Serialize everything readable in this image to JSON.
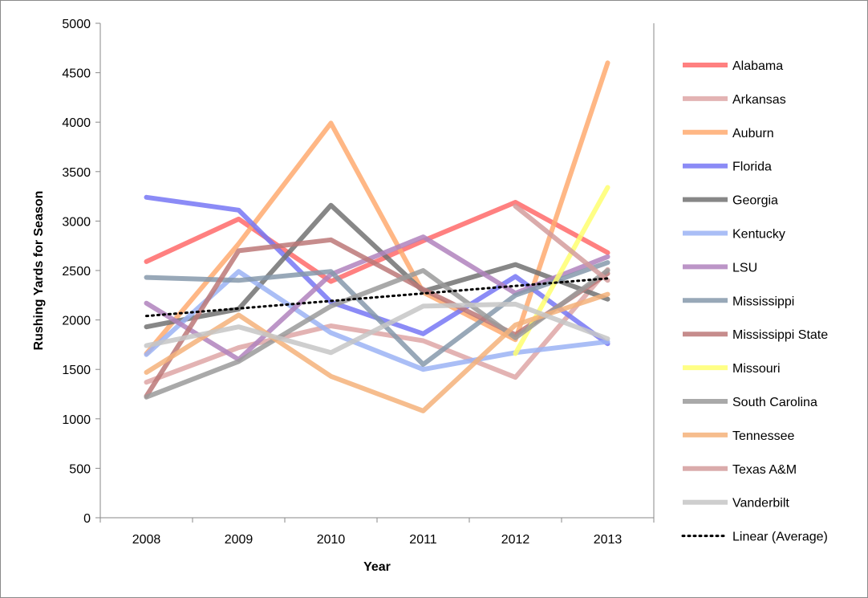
{
  "chart_data": {
    "type": "line",
    "title": "",
    "xlabel": "Year",
    "ylabel": "Rushing Yards for Season",
    "x": [
      "2008",
      "2009",
      "2010",
      "2011",
      "2012",
      "2013"
    ],
    "ylim": [
      0,
      5000
    ],
    "yticks": [
      0,
      500,
      1000,
      1500,
      2000,
      2500,
      3000,
      3500,
      4000,
      4500,
      5000
    ],
    "grid": false,
    "legend_position": "right",
    "series": [
      {
        "name": "Alabama",
        "color": "#ff6a6a",
        "values": [
          2590,
          3020,
          2390,
          2800,
          3190,
          2680
        ]
      },
      {
        "name": "Arkansas",
        "color": "#dea6a6",
        "values": [
          1370,
          1720,
          1940,
          1790,
          1420,
          2510
        ]
      },
      {
        "name": "Auburn",
        "color": "#ffaa70",
        "values": [
          1660,
          2770,
          3990,
          2280,
          1800,
          4600
        ]
      },
      {
        "name": "Florida",
        "color": "#7777f5",
        "values": [
          3240,
          3110,
          2180,
          1860,
          2440,
          1760
        ]
      },
      {
        "name": "Georgia",
        "color": "#727272",
        "values": [
          1930,
          2110,
          3160,
          2290,
          2560,
          2210
        ]
      },
      {
        "name": "Kentucky",
        "color": "#9bb3f5",
        "values": [
          1650,
          2490,
          1870,
          1500,
          1670,
          1780
        ]
      },
      {
        "name": "LSU",
        "color": "#b082bd",
        "values": [
          2170,
          1600,
          2460,
          2840,
          2270,
          2640
        ]
      },
      {
        "name": "Mississippi",
        "color": "#8699ab",
        "values": [
          2430,
          2400,
          2490,
          1550,
          2250,
          2580
        ]
      },
      {
        "name": "Mississippi State",
        "color": "#bc7878",
        "values": [
          1230,
          2700,
          2810,
          2310,
          1850,
          2470
        ]
      },
      {
        "name": "Missouri",
        "color": "#ffff70",
        "values": [
          null,
          null,
          null,
          null,
          1660,
          3340
        ]
      },
      {
        "name": "South Carolina",
        "color": "#9a9a9a",
        "values": [
          1220,
          1580,
          2140,
          2500,
          1820,
          2500
        ]
      },
      {
        "name": "Tennessee",
        "color": "#f5b27a",
        "values": [
          1470,
          2050,
          1430,
          1080,
          1950,
          2260
        ]
      },
      {
        "name": "Texas A&M",
        "color": "#d49c9c",
        "values": [
          null,
          null,
          null,
          null,
          3150,
          2400
        ]
      },
      {
        "name": "Vanderbilt",
        "color": "#c6c6c6",
        "values": [
          1740,
          1930,
          1670,
          2140,
          2160,
          1810
        ]
      }
    ],
    "trendline": {
      "name": "Linear (Average)",
      "color": "#000000",
      "style": "dotted",
      "start": 2040,
      "end": 2420
    }
  }
}
